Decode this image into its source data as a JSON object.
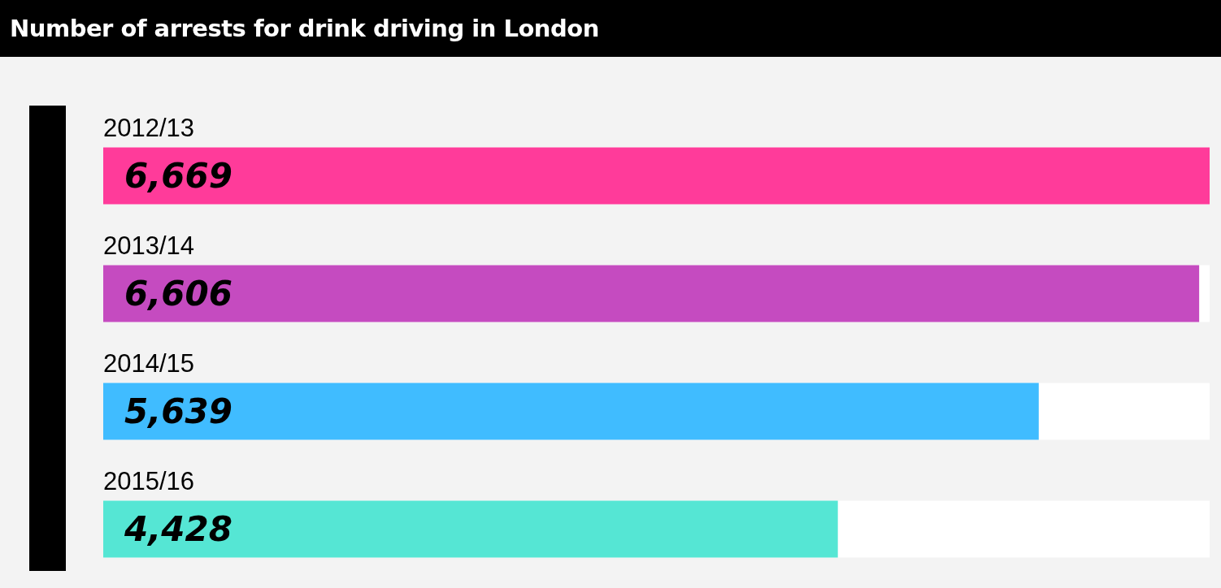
{
  "chart_data": {
    "type": "bar",
    "title": "Number of arrests for drink driving in London",
    "orientation": "horizontal",
    "categories": [
      "2012/13",
      "2013/14",
      "2014/15",
      "2015/16"
    ],
    "values": [
      6669,
      6606,
      5639,
      4428
    ],
    "value_labels": [
      "6,669",
      "6,606",
      "5,639",
      "4,428"
    ],
    "colors": [
      "#ff3b9a",
      "#c54bc0",
      "#40bcff",
      "#55e6d4"
    ]
  }
}
